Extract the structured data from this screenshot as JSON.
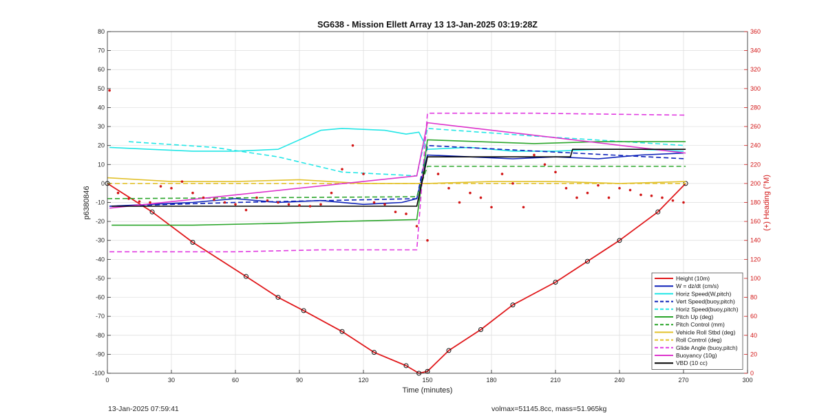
{
  "colors": {
    "height": "#e0171a",
    "w": "#0a1fb8",
    "horiz_speed": "#22e6e6",
    "pitch": "#2aa52a",
    "roll": "#e2c12b",
    "glide": "#e03ae0",
    "buoyancy": "#dd33cc",
    "vbd": "#000000",
    "heading": "#d21616"
  },
  "footer": {
    "left": "13-Jan-2025 07:59:41",
    "right": "volmax=51145.8cc, mass=51.965kg"
  },
  "chart_data": {
    "type": "line",
    "title": "SG638 - Mission Ellett Array 13 13-Jan-2025 03:19:28Z",
    "xlabel": "Time (minutes)",
    "ylabel": "p6380846",
    "y2label": "(+) Heading (°M)",
    "xlim": [
      0,
      300
    ],
    "ylim": [
      -100,
      80
    ],
    "y2lim": [
      0,
      360
    ],
    "xticks": [
      0,
      30,
      60,
      90,
      120,
      150,
      180,
      210,
      240,
      270,
      300
    ],
    "yticks": [
      -100,
      -90,
      -80,
      -70,
      -60,
      -50,
      -40,
      -30,
      -20,
      -10,
      0,
      10,
      20,
      30,
      40,
      50,
      60,
      70,
      80
    ],
    "y2ticks": [
      0,
      20,
      40,
      60,
      80,
      100,
      120,
      140,
      160,
      180,
      200,
      220,
      240,
      260,
      280,
      300,
      320,
      340,
      360
    ],
    "grid": true,
    "legend_position": "bottom-right",
    "series": [
      {
        "name": "Height (10m)",
        "style": "solid",
        "color": "#e0171a",
        "markers": true,
        "x": [
          0,
          21,
          40,
          65,
          80,
          92,
          110,
          125,
          140,
          146,
          150,
          160,
          175,
          190,
          210,
          225,
          240,
          258,
          271
        ],
        "y": [
          0,
          -15,
          -31,
          -49,
          -60,
          -67,
          -78,
          -89,
          -96,
          -100,
          -99,
          -88,
          -77,
          -64,
          -52,
          -41,
          -30,
          -15,
          0
        ]
      },
      {
        "name": "W = dz/dt (cm/s)",
        "style": "solid",
        "color": "#0a1fb8",
        "x": [
          1,
          20,
          40,
          60,
          80,
          100,
          120,
          138,
          145,
          150,
          170,
          190,
          210,
          230,
          250,
          270
        ],
        "y": [
          -12,
          -11,
          -10,
          -8,
          -10,
          -9,
          -11,
          -10,
          -8,
          15,
          14,
          13,
          14,
          13,
          15,
          16
        ]
      },
      {
        "name": "Horiz Speed(W,pitch)",
        "style": "solid",
        "color": "#22e6e6",
        "x": [
          1,
          20,
          40,
          60,
          80,
          100,
          110,
          130,
          140,
          146,
          150,
          170,
          190,
          210,
          230,
          250,
          270
        ],
        "y": [
          19,
          18,
          17,
          17,
          18,
          28,
          29,
          28,
          26,
          27,
          18,
          19,
          17,
          17,
          18,
          18,
          17
        ]
      },
      {
        "name": "Vert Speed(buoy,pitch)",
        "style": "dashed",
        "color": "#0a1fb8",
        "x": [
          1,
          60,
          145,
          150,
          271
        ],
        "y": [
          -12,
          -10,
          -8,
          20,
          13
        ]
      },
      {
        "name": "Horiz Speed(buoy,pitch)",
        "style": "dashed",
        "color": "#22e6e6",
        "x": [
          10,
          50,
          80,
          110,
          145,
          150,
          200,
          271
        ],
        "y": [
          22,
          19,
          14,
          6,
          4,
          29,
          25,
          20
        ]
      },
      {
        "name": "Pitch Up (deg)",
        "style": "solid",
        "color": "#2aa52a",
        "x": [
          2,
          40,
          80,
          110,
          145,
          150,
          200,
          230,
          271
        ],
        "y": [
          -22,
          -22,
          -21,
          -20,
          -19,
          23,
          21,
          22,
          22
        ]
      },
      {
        "name": "Pitch Control (mm)",
        "style": "dashed",
        "color": "#2aa52a",
        "x": [
          0,
          145,
          150,
          271
        ],
        "y": [
          -8,
          -7,
          9,
          9
        ]
      },
      {
        "name": "Vehicle Roll Stbd (deg)",
        "style": "solid",
        "color": "#e2c12b",
        "x": [
          0,
          30,
          60,
          90,
          120,
          145,
          150,
          180,
          210,
          240,
          271
        ],
        "y": [
          3,
          1,
          1,
          2,
          0,
          0,
          0,
          1,
          1,
          0,
          1
        ]
      },
      {
        "name": "Roll Control (deg)",
        "style": "dashed",
        "color": "#e2c12b",
        "x": [
          0,
          271
        ],
        "y": [
          0,
          0
        ]
      },
      {
        "name": "Glide Angle (buoy,pitch)",
        "style": "dashed",
        "color": "#e03ae0",
        "x": [
          1,
          60,
          100,
          140,
          145,
          150,
          200,
          271
        ],
        "y": [
          -36,
          -36,
          -35,
          -35,
          -35,
          37,
          37,
          36
        ]
      },
      {
        "name": "Buoyancy (10g)",
        "style": "solid",
        "color": "#dd33cc",
        "x": [
          1,
          145,
          150,
          271
        ],
        "y": [
          -13,
          4,
          32,
          16
        ]
      },
      {
        "name": "VBD (10 cc)",
        "style": "solid",
        "color": "#000000",
        "x": [
          2,
          145,
          150,
          217,
          218,
          271
        ],
        "y": [
          -12,
          -12,
          14,
          14,
          18,
          18
        ]
      }
    ],
    "heading_points": {
      "name": "(+) Heading (°M)",
      "axis": "right",
      "color": "#d21616",
      "x": [
        1,
        5,
        10,
        15,
        20,
        25,
        30,
        35,
        40,
        45,
        50,
        55,
        60,
        65,
        70,
        75,
        80,
        85,
        90,
        95,
        100,
        105,
        110,
        115,
        120,
        125,
        130,
        135,
        140,
        145,
        150,
        155,
        160,
        165,
        170,
        175,
        180,
        185,
        190,
        195,
        200,
        205,
        210,
        215,
        220,
        225,
        230,
        235,
        240,
        245,
        250,
        255,
        260,
        265,
        270
      ],
      "y": [
        298,
        190,
        184,
        181,
        180,
        197,
        195,
        202,
        190,
        185,
        183,
        180,
        178,
        172,
        185,
        182,
        180,
        178,
        177,
        176,
        178,
        190,
        215,
        240,
        210,
        180,
        178,
        170,
        168,
        155,
        140,
        210,
        195,
        180,
        190,
        185,
        175,
        210,
        200,
        175,
        230,
        220,
        212,
        195,
        185,
        190,
        198,
        185,
        195,
        193,
        188,
        187,
        185,
        182,
        180
      ]
    }
  }
}
